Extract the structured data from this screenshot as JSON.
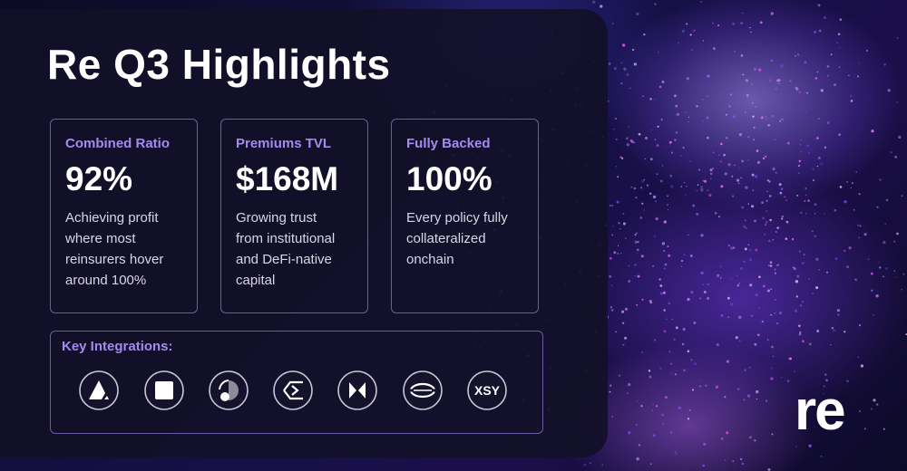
{
  "title": "Re Q3 Highlights",
  "cards": [
    {
      "label": "Combined Ratio",
      "value": "92%",
      "description": [
        "Achieving profit",
        "where most",
        "reinsurers hover",
        "around 100%"
      ]
    },
    {
      "label": "Premiums TVL",
      "value": "$168M",
      "description": [
        "Growing trust",
        "from institutional",
        "and DeFi-native",
        "capital"
      ]
    },
    {
      "label": "Fully Backed",
      "value": "100%",
      "description": [
        "Every policy fully",
        "collateralized",
        "onchain"
      ]
    }
  ],
  "integrations": {
    "label": "Key Integrations:",
    "icon_text": "XSY"
  },
  "logo": "re"
}
